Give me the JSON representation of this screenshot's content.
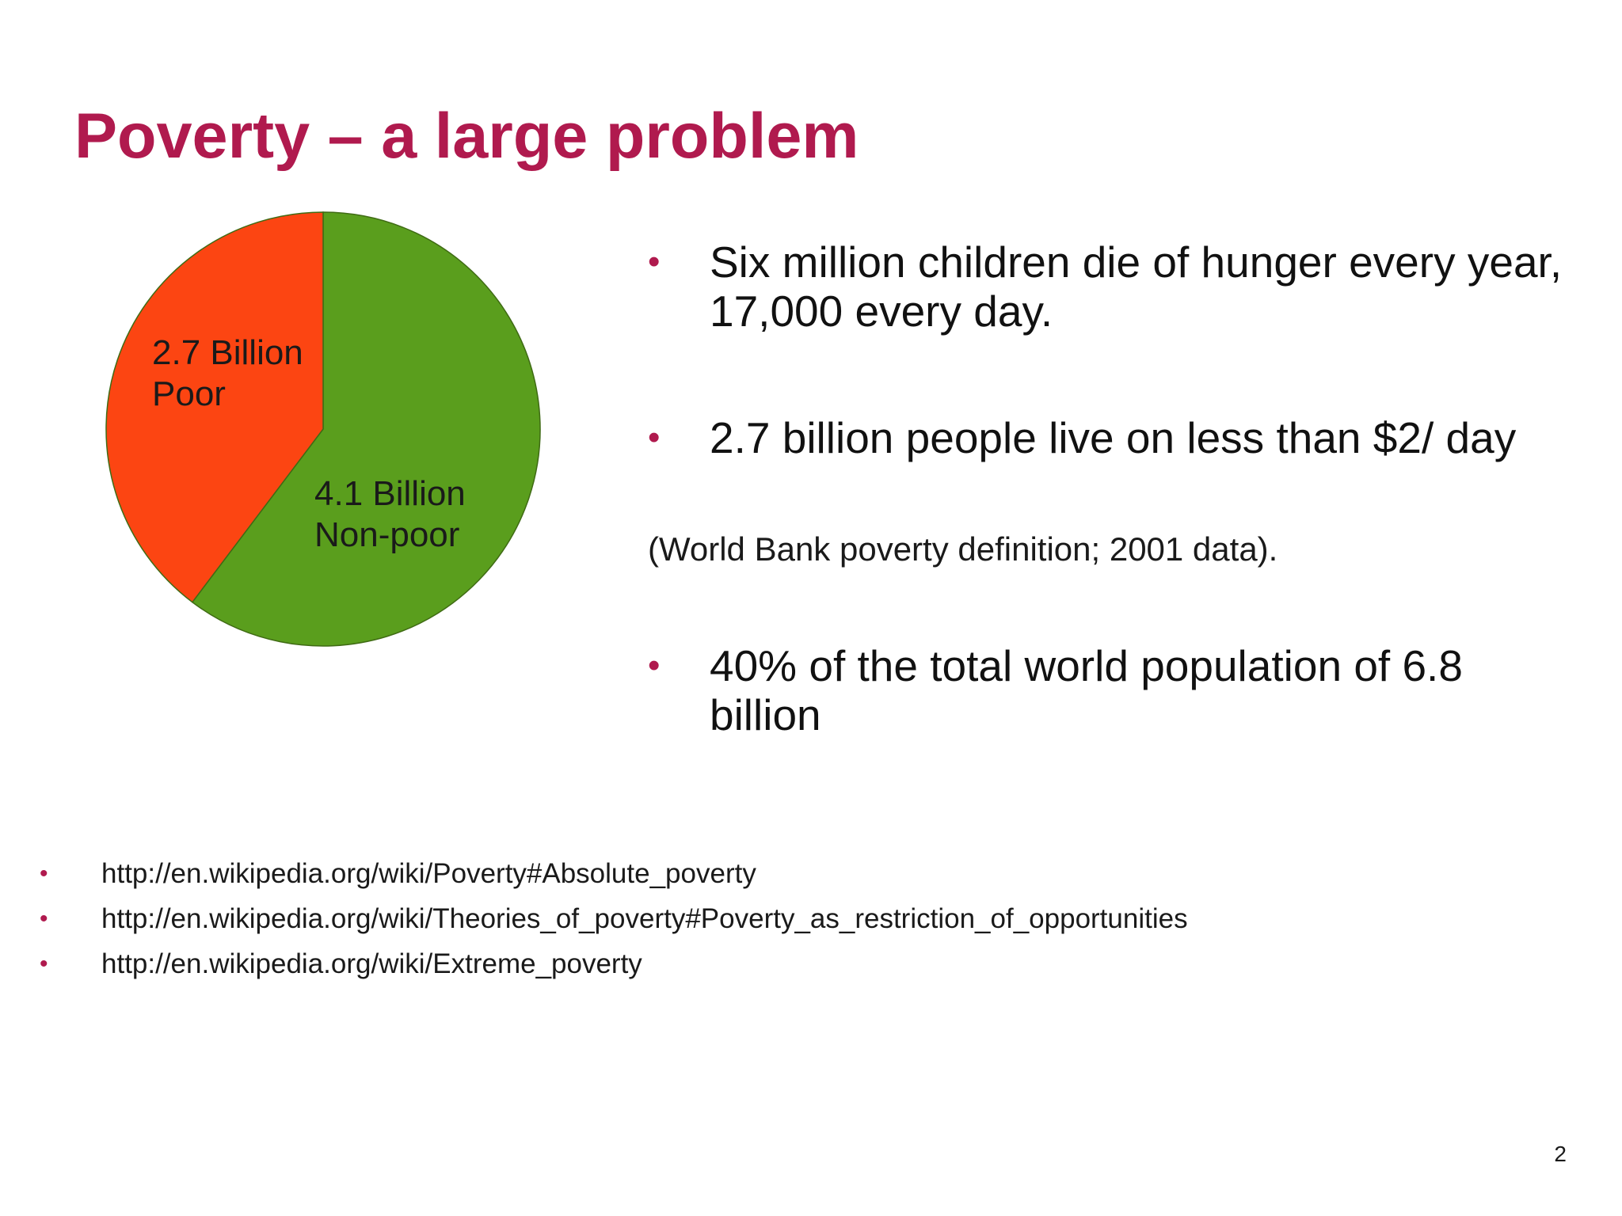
{
  "slide": {
    "title": "Poverty – a large problem",
    "page_number": "2"
  },
  "chart_data": {
    "type": "pie",
    "title": "",
    "slices": [
      {
        "label_line1": "2.7 Billion",
        "label_line2": "Poor",
        "value": 2.7,
        "color": "#fc4512"
      },
      {
        "label_line1": "4.1 Billion",
        "label_line2": "Non-poor",
        "value": 4.1,
        "color": "#5a9e1d"
      }
    ],
    "start": "12 o'clock",
    "direction": "clockwise",
    "first_slice_drawn": "Non-poor"
  },
  "bullets": [
    {
      "text": "Six million children die of hunger every year, 17,000 every day."
    },
    {
      "text": "2.7 billion people live on less than $2/ day"
    },
    {
      "text": "40% of the total world population of 6.8 billion"
    }
  ],
  "note": "(World Bank poverty definition; 2001 data).",
  "references": [
    "http://en.wikipedia.org/wiki/Poverty#Absolute_poverty",
    "http://en.wikipedia.org/wiki/Theories_of_poverty#Poverty_as_restriction_of_opportunities",
    "http://en.wikipedia.org/wiki/Extreme_poverty"
  ],
  "bullet_glyph": "•",
  "accent_color": "#b01a4e"
}
